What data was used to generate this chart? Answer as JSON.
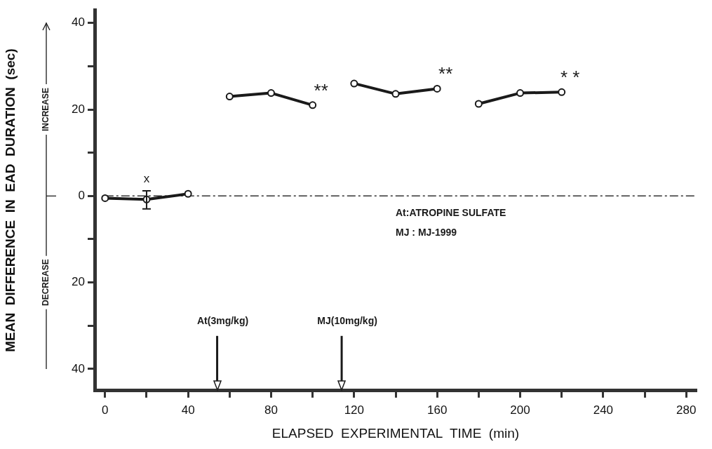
{
  "chart_data": {
    "type": "line",
    "xlabel": "ELAPSED  EXPERIMENTAL  TIME  (min)",
    "ylabel": "MEAN  DIFFERENCE  IN  EAD  DURATION  (sec)",
    "series": [
      {
        "color": "#1a1a1a",
        "x": [
          0,
          20,
          40
        ],
        "values": [
          -0.5,
          -0.8,
          0.5
        ],
        "errors": [
          null,
          [
            -3,
            1.2
          ],
          null
        ]
      },
      {
        "color": "#1a1a1a",
        "x": [
          60,
          80,
          100
        ],
        "values": [
          23,
          23.8,
          21
        ]
      },
      {
        "color": "#1a1a1a",
        "x": [
          120,
          140,
          160
        ],
        "values": [
          26,
          23.6,
          24.8
        ]
      },
      {
        "color": "#1a1a1a",
        "x": [
          180,
          200,
          220
        ],
        "values": [
          21.3,
          23.8,
          24
        ]
      }
    ],
    "xlim": [
      -5,
      285
    ],
    "xticks": [
      0,
      {
        "value": 20,
        "label": null
      },
      40,
      {
        "value": 60,
        "label": null
      },
      80,
      {
        "value": 100,
        "label": null
      },
      120,
      {
        "value": 140,
        "label": null
      },
      160,
      {
        "value": 180,
        "label": null
      },
      200,
      {
        "value": 220,
        "label": null
      },
      240,
      {
        "value": 260,
        "label": null
      },
      280
    ],
    "ylim": [
      -45,
      43
    ],
    "yticks": [
      {
        "value": -40,
        "label": "40"
      },
      {
        "value": -30,
        "label": null
      },
      {
        "value": -20,
        "label": "20"
      },
      {
        "value": -10,
        "label": null
      },
      0,
      {
        "value": 10,
        "label": null
      },
      20,
      {
        "value": 30,
        "label": null
      },
      40
    ],
    "ref_lines": [
      {
        "axis": "y",
        "value": 0,
        "line_style": "dashed",
        "color": "#333333"
      },
      {
        "axis": "x",
        "value": 54,
        "label": "At(3mg/kg)",
        "color": "#1a1a1a"
      },
      {
        "axis": "x",
        "value": 114,
        "label": "MJ(10mg/kg)",
        "color": "#1a1a1a"
      }
    ],
    "annotations": [
      "INCREASE",
      "DECREASE",
      "At:ATROPINE SULFATE",
      "MJ : MJ-1999",
      {
        "text": "x",
        "x": 20,
        "y": 1.2
      },
      {
        "text": "**",
        "x": 100,
        "y": 21
      },
      {
        "text": "**",
        "x": 160,
        "y": 24.8
      },
      {
        "text": "* *",
        "x": 220,
        "y": 24
      }
    ],
    "marker": "circle",
    "line_style": "solid",
    "grid": false,
    "legend": false
  }
}
